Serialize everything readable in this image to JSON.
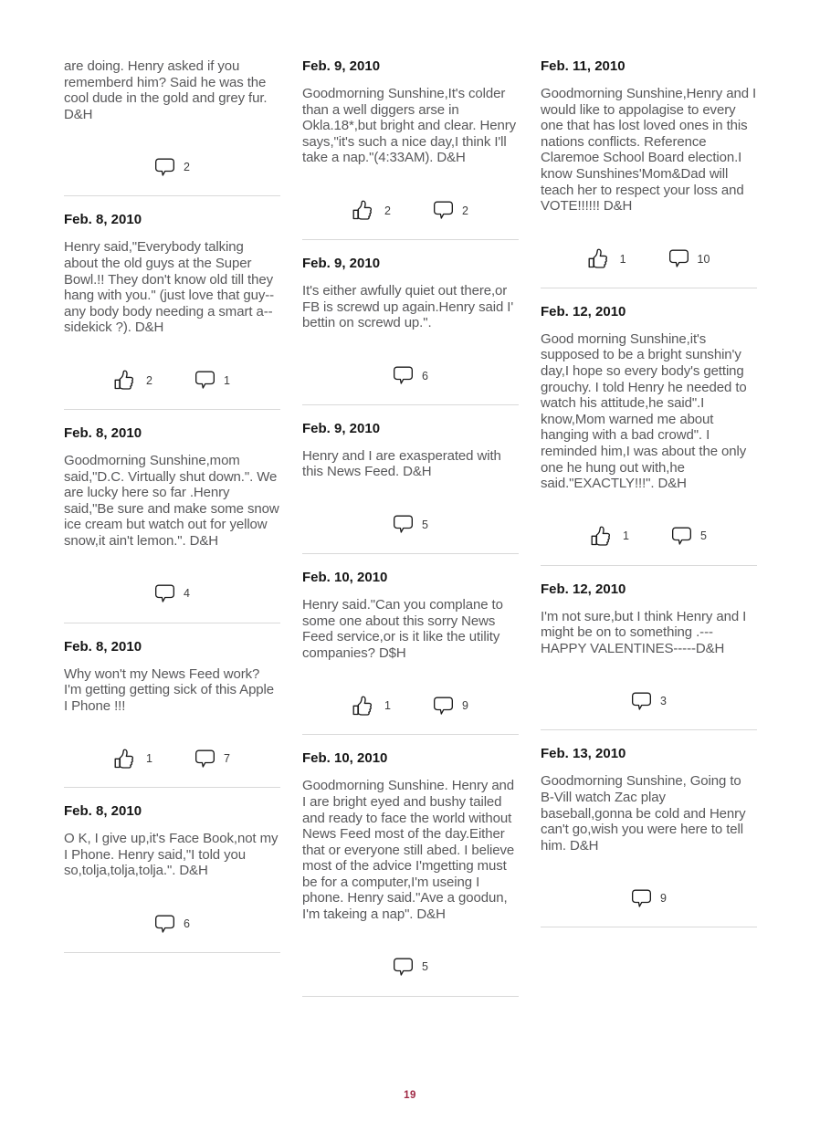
{
  "page": {
    "number": "19",
    "accent_color": "#a02945"
  },
  "icons": {
    "like": "thumbs-up-icon",
    "comment": "comment-bubble-icon"
  },
  "columns": [
    {
      "posts": [
        {
          "date": null,
          "text": "are doing. Henry asked if you rememberd him? Said he was the cool dude in the gold and grey fur. D&H",
          "likes": null,
          "comments": "2"
        },
        {
          "date": "Feb. 8, 2010",
          "text": "Henry said,\"Everybody talking about the old guys at the Super Bowl.!! They don't know old till they hang with you.\" (just love that guy--any body body needing a smart a-- sidekick ?). D&H",
          "likes": "2",
          "comments": "1"
        },
        {
          "date": "Feb. 8, 2010",
          "text": "Goodmorning Sunshine,mom said,\"D.C. Virtually shut down.\". We are lucky here so far .Henry said,\"Be sure and make some snow ice cream but watch out for yellow snow,it ain't lemon.\". D&H",
          "likes": null,
          "comments": "4"
        },
        {
          "date": "Feb. 8, 2010",
          "text": "Why won't my News Feed work? I'm getting getting sick of this Apple I Phone !!!",
          "likes": "1",
          "comments": "7"
        },
        {
          "date": "Feb. 8, 2010",
          "text": "O K, I give up,it's Face Book,not my I Phone. Henry said,\"I told you so,tolja,tolja,tolja.\". D&H",
          "likes": null,
          "comments": "6"
        }
      ]
    },
    {
      "posts": [
        {
          "date": "Feb. 9, 2010",
          "text": "Goodmorning Sunshine,It's colder than a well diggers arse in Okla.18*,but bright and clear. Henry says,\"it's such a nice day,I think I'll take a nap.\"(4:33AM). D&H",
          "likes": "2",
          "comments": "2"
        },
        {
          "date": "Feb. 9, 2010",
          "text": "It's either awfully quiet out there,or FB is screwd up again.Henry said I' bettin on screwd up.\".",
          "likes": null,
          "comments": "6"
        },
        {
          "date": "Feb. 9, 2010",
          "text": "Henry and I are exasperated with this News Feed. D&H",
          "likes": null,
          "comments": "5"
        },
        {
          "date": "Feb. 10, 2010",
          "text": "Henry said.\"Can you complane to some one about this sorry News Feed service,or is it like the utility companies? D$H",
          "likes": "1",
          "comments": "9"
        },
        {
          "date": "Feb. 10, 2010",
          "text": "Goodmorning Sunshine. Henry and I are bright eyed and bushy tailed and ready to face the world without News Feed most of the day.Either that or everyone still abed. I believe most of the advice I'mgetting must be for a computer,I'm useing I phone. Henry said.\"Ave a goodun, I'm takeing a nap\". D&H",
          "likes": null,
          "comments": "5"
        }
      ]
    },
    {
      "posts": [
        {
          "date": "Feb. 11, 2010",
          "text": "Goodmorning Sunshine,Henry and I would like to appolagise to every one that has lost loved ones in this nations conflicts. Reference Claremoe School Board election.I know Sunshines'Mom&Dad will teach her to respect your loss and VOTE!!!!!! D&H",
          "likes": "1",
          "comments": "10"
        },
        {
          "date": "Feb. 12, 2010",
          "text": "Good morning Sunshine,it's supposed to be a bright sunshin'y day,I hope so every body's getting grouchy. I told Henry he needed to watch his attitude,he said\".I know,Mom warned me about hanging with a bad crowd\". I reminded him,I was about the only one he hung out with,he said.\"EXACTLY!!!\". D&H",
          "likes": "1",
          "comments": "5"
        },
        {
          "date": "Feb. 12, 2010",
          "text": "I'm not sure,but I think Henry and I might be on to something .---HAPPY VALENTINES-----D&H",
          "likes": null,
          "comments": "3"
        },
        {
          "date": "Feb. 13, 2010",
          "text": "Goodmorning Sunshine, Going to B-Vill watch Zac play baseball,gonna be cold and Henry can't go,wish you were here to tell him. D&H",
          "likes": null,
          "comments": "9"
        }
      ]
    }
  ]
}
